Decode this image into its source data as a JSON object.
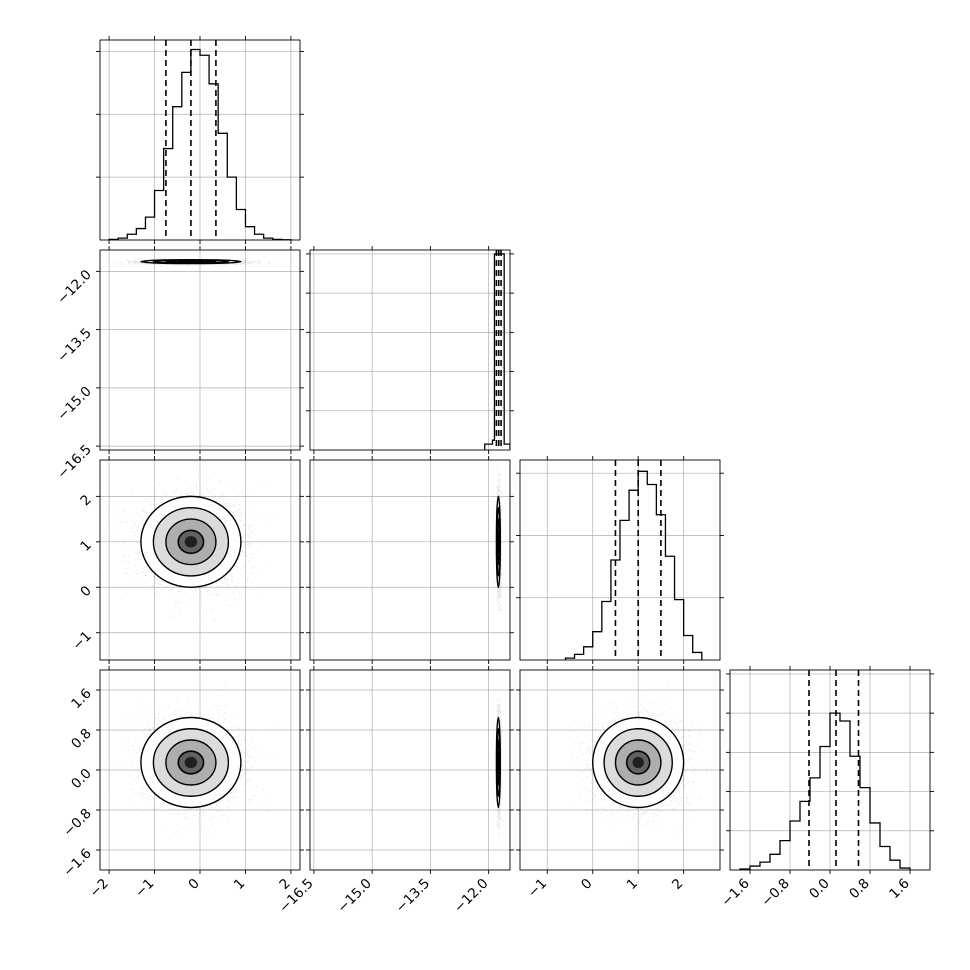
{
  "chart_data": {
    "type": "corner",
    "grid": true,
    "parameters": [
      {
        "range": [
          -2.2,
          2.2
        ],
        "ticks": [
          -2,
          -1,
          0,
          1,
          2
        ],
        "tick_labels": [
          "−2",
          "−1",
          "0",
          "1",
          "2"
        ],
        "quantiles": [
          -0.75,
          -0.2,
          0.35
        ]
      },
      {
        "range": [
          -16.6,
          -11.45
        ],
        "ticks": [
          -16.5,
          -15.0,
          -13.5,
          -12.0
        ],
        "tick_labels": [
          "−16.5",
          "−15.0",
          "−13.5",
          "−12.0"
        ],
        "quantiles": [
          -11.8,
          -11.74,
          -11.68
        ]
      },
      {
        "range": [
          -1.6,
          2.8
        ],
        "ticks": [
          -1,
          0,
          1,
          2
        ],
        "tick_labels": [
          "−1",
          "0",
          "1",
          "2"
        ],
        "quantiles": [
          0.5,
          1.0,
          1.5
        ]
      },
      {
        "range": [
          -2.0,
          2.0
        ],
        "ticks": [
          -1.6,
          -0.8,
          0.0,
          0.8,
          1.6
        ],
        "tick_labels": [
          "−1.6",
          "−0.8",
          "0.0",
          "0.8",
          "1.6"
        ],
        "quantiles": [
          -0.42,
          0.12,
          0.57
        ]
      }
    ],
    "histograms": [
      {
        "param": 0,
        "bin_edges": [
          -2.0,
          -1.8,
          -1.6,
          -1.4,
          -1.2,
          -1.0,
          -0.8,
          -0.6,
          -0.4,
          -0.2,
          0.0,
          0.2,
          0.4,
          0.6,
          0.8,
          1.0,
          1.2,
          1.4,
          1.6,
          1.8,
          2.0
        ],
        "counts": [
          0.3,
          1,
          3,
          6,
          12,
          26,
          48,
          70,
          88,
          100,
          97,
          82,
          56,
          33,
          16,
          7,
          3,
          1,
          0.3,
          0.1
        ],
        "ymax": 105,
        "yticks": [
          33,
          66,
          99
        ]
      },
      {
        "param": 1,
        "bin_edges": [
          -12.1,
          -11.9,
          -11.85,
          -11.6,
          -11.45
        ],
        "counts": [
          3,
          5,
          100,
          3
        ],
        "ymax": 102,
        "yticks": [
          20,
          40,
          60,
          80,
          100
        ]
      },
      {
        "param": 2,
        "bin_edges": [
          -0.6,
          -0.4,
          -0.2,
          0.0,
          0.2,
          0.4,
          0.6,
          0.8,
          1.0,
          1.2,
          1.4,
          1.6,
          1.8,
          2.0,
          2.2,
          2.4
        ],
        "counts": [
          1,
          3,
          7,
          15,
          31,
          53,
          74,
          90,
          100,
          93,
          77,
          55,
          32,
          13,
          4
        ],
        "ymax": 106,
        "yticks": [
          33,
          66,
          99
        ]
      },
      {
        "param": 3,
        "bin_edges": [
          -1.8,
          -1.6,
          -1.4,
          -1.2,
          -1.0,
          -0.8,
          -0.6,
          -0.4,
          -0.2,
          0.0,
          0.2,
          0.4,
          0.6,
          0.8,
          1.0,
          1.2,
          1.4,
          1.6
        ],
        "counts": [
          0.5,
          2,
          4,
          8,
          15,
          25,
          35,
          47,
          63,
          80,
          76,
          58,
          42,
          24,
          12,
          5,
          1
        ],
        "ymax": 102,
        "yticks": [
          20,
          40,
          60,
          80,
          100
        ]
      }
    ],
    "scatter_panels": [
      {
        "row": 1,
        "col": 0,
        "center": [
          -0.2,
          -11.75
        ],
        "spread": [
          0.55,
          0.025
        ]
      },
      {
        "row": 2,
        "col": 0,
        "center": [
          -0.2,
          1.0
        ],
        "spread": [
          0.55,
          0.5
        ]
      },
      {
        "row": 2,
        "col": 1,
        "center": [
          -11.75,
          1.0
        ],
        "spread": [
          0.025,
          0.5
        ]
      },
      {
        "row": 3,
        "col": 0,
        "center": [
          -0.2,
          0.15
        ],
        "spread": [
          0.55,
          0.45
        ]
      },
      {
        "row": 3,
        "col": 1,
        "center": [
          -11.75,
          0.15
        ],
        "spread": [
          0.025,
          0.45
        ]
      },
      {
        "row": 3,
        "col": 2,
        "center": [
          1.0,
          0.15
        ],
        "spread": [
          0.5,
          0.45
        ]
      }
    ]
  }
}
